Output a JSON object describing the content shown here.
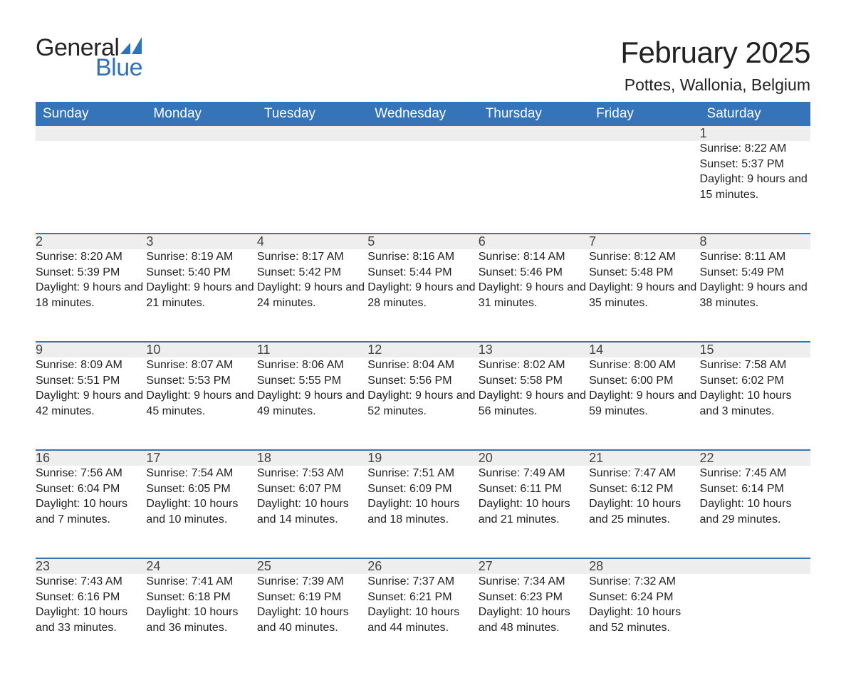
{
  "brand": {
    "word1": "General",
    "word2": "Blue",
    "text_color": "#242424",
    "accent_color": "#2f72b8"
  },
  "title": {
    "month_year": "February 2025",
    "location": "Pottes, Wallonia, Belgium"
  },
  "style": {
    "header_bg": "#3674b9",
    "header_fg": "#ffffff",
    "daynum_bg": "#eeeeee",
    "week_sep_color": "#3674b9",
    "page_bg": "#ffffff",
    "body_text_color": "#222222",
    "title_fontsize": 42,
    "location_fontsize": 23,
    "header_fontsize": 19,
    "daynum_fontsize": 18,
    "body_fontsize": 16
  },
  "weekdays": [
    "Sunday",
    "Monday",
    "Tuesday",
    "Wednesday",
    "Thursday",
    "Friday",
    "Saturday"
  ],
  "labels": {
    "sunrise": "Sunrise:",
    "sunset": "Sunset:",
    "daylight": "Daylight:"
  },
  "weeks": [
    [
      null,
      null,
      null,
      null,
      null,
      null,
      {
        "n": "1",
        "sunrise": "8:22 AM",
        "sunset": "5:37 PM",
        "daylight": "9 hours and 15 minutes."
      }
    ],
    [
      {
        "n": "2",
        "sunrise": "8:20 AM",
        "sunset": "5:39 PM",
        "daylight": "9 hours and 18 minutes."
      },
      {
        "n": "3",
        "sunrise": "8:19 AM",
        "sunset": "5:40 PM",
        "daylight": "9 hours and 21 minutes."
      },
      {
        "n": "4",
        "sunrise": "8:17 AM",
        "sunset": "5:42 PM",
        "daylight": "9 hours and 24 minutes."
      },
      {
        "n": "5",
        "sunrise": "8:16 AM",
        "sunset": "5:44 PM",
        "daylight": "9 hours and 28 minutes."
      },
      {
        "n": "6",
        "sunrise": "8:14 AM",
        "sunset": "5:46 PM",
        "daylight": "9 hours and 31 minutes."
      },
      {
        "n": "7",
        "sunrise": "8:12 AM",
        "sunset": "5:48 PM",
        "daylight": "9 hours and 35 minutes."
      },
      {
        "n": "8",
        "sunrise": "8:11 AM",
        "sunset": "5:49 PM",
        "daylight": "9 hours and 38 minutes."
      }
    ],
    [
      {
        "n": "9",
        "sunrise": "8:09 AM",
        "sunset": "5:51 PM",
        "daylight": "9 hours and 42 minutes."
      },
      {
        "n": "10",
        "sunrise": "8:07 AM",
        "sunset": "5:53 PM",
        "daylight": "9 hours and 45 minutes."
      },
      {
        "n": "11",
        "sunrise": "8:06 AM",
        "sunset": "5:55 PM",
        "daylight": "9 hours and 49 minutes."
      },
      {
        "n": "12",
        "sunrise": "8:04 AM",
        "sunset": "5:56 PM",
        "daylight": "9 hours and 52 minutes."
      },
      {
        "n": "13",
        "sunrise": "8:02 AM",
        "sunset": "5:58 PM",
        "daylight": "9 hours and 56 minutes."
      },
      {
        "n": "14",
        "sunrise": "8:00 AM",
        "sunset": "6:00 PM",
        "daylight": "9 hours and 59 minutes."
      },
      {
        "n": "15",
        "sunrise": "7:58 AM",
        "sunset": "6:02 PM",
        "daylight": "10 hours and 3 minutes."
      }
    ],
    [
      {
        "n": "16",
        "sunrise": "7:56 AM",
        "sunset": "6:04 PM",
        "daylight": "10 hours and 7 minutes."
      },
      {
        "n": "17",
        "sunrise": "7:54 AM",
        "sunset": "6:05 PM",
        "daylight": "10 hours and 10 minutes."
      },
      {
        "n": "18",
        "sunrise": "7:53 AM",
        "sunset": "6:07 PM",
        "daylight": "10 hours and 14 minutes."
      },
      {
        "n": "19",
        "sunrise": "7:51 AM",
        "sunset": "6:09 PM",
        "daylight": "10 hours and 18 minutes."
      },
      {
        "n": "20",
        "sunrise": "7:49 AM",
        "sunset": "6:11 PM",
        "daylight": "10 hours and 21 minutes."
      },
      {
        "n": "21",
        "sunrise": "7:47 AM",
        "sunset": "6:12 PM",
        "daylight": "10 hours and 25 minutes."
      },
      {
        "n": "22",
        "sunrise": "7:45 AM",
        "sunset": "6:14 PM",
        "daylight": "10 hours and 29 minutes."
      }
    ],
    [
      {
        "n": "23",
        "sunrise": "7:43 AM",
        "sunset": "6:16 PM",
        "daylight": "10 hours and 33 minutes."
      },
      {
        "n": "24",
        "sunrise": "7:41 AM",
        "sunset": "6:18 PM",
        "daylight": "10 hours and 36 minutes."
      },
      {
        "n": "25",
        "sunrise": "7:39 AM",
        "sunset": "6:19 PM",
        "daylight": "10 hours and 40 minutes."
      },
      {
        "n": "26",
        "sunrise": "7:37 AM",
        "sunset": "6:21 PM",
        "daylight": "10 hours and 44 minutes."
      },
      {
        "n": "27",
        "sunrise": "7:34 AM",
        "sunset": "6:23 PM",
        "daylight": "10 hours and 48 minutes."
      },
      {
        "n": "28",
        "sunrise": "7:32 AM",
        "sunset": "6:24 PM",
        "daylight": "10 hours and 52 minutes."
      },
      null
    ]
  ]
}
